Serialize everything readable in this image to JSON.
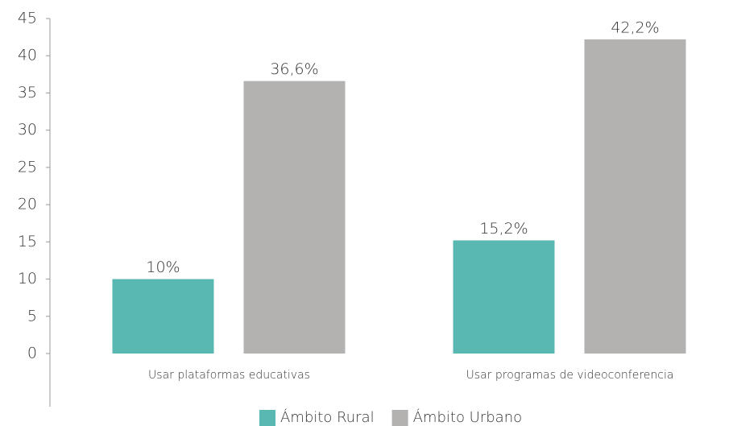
{
  "chart_data": {
    "type": "bar",
    "categories": [
      "Usar plataformas educativas",
      "Usar programas de videoconferencia"
    ],
    "series": [
      {
        "name": "Ámbito Rural",
        "color": "#5ab8b3",
        "values": [
          10,
          15.2
        ],
        "value_labels": [
          "10%",
          "15,2%"
        ]
      },
      {
        "name": "Ámbito Urbano",
        "color": "#b3b2b0",
        "values": [
          36.6,
          42.2
        ],
        "value_labels": [
          "36,6%",
          "42,2%"
        ]
      }
    ],
    "ylim": [
      0,
      45
    ],
    "yticks": [
      0,
      5,
      10,
      15,
      20,
      25,
      30,
      35,
      40,
      45
    ]
  }
}
